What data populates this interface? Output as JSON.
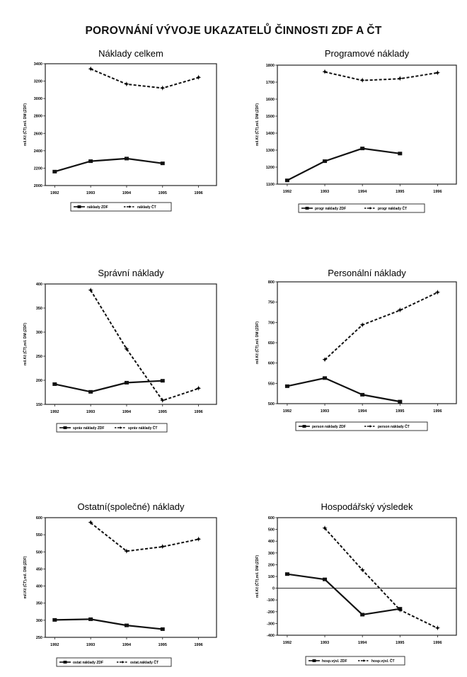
{
  "page_title": "POROVNÁNÍ VÝVOJE UKAZATELŮ ČINNOSTI ZDF A ČT",
  "chart_data": [
    {
      "type": "line",
      "title": "Náklady celkem",
      "ylabel": "mil.Kč (ČT),mil. DM (ZDF)",
      "categories": [
        "1992",
        "1993",
        "1994",
        "1995",
        "1996"
      ],
      "ylim": [
        2000,
        3400
      ],
      "yticks": [
        2000,
        2200,
        2400,
        2600,
        2800,
        3000,
        3200,
        3400
      ],
      "series": [
        {
          "name": "náklady  ZDF",
          "style": "solid",
          "values": [
            2160,
            2280,
            2310,
            2255,
            null
          ]
        },
        {
          "name": "náklady  ČT",
          "style": "dashed",
          "values": [
            null,
            3340,
            3165,
            3120,
            3240
          ]
        }
      ]
    },
    {
      "type": "line",
      "title": "Programové náklady",
      "ylabel": "mil.Kč (ČT),mil. DM (ZDF)",
      "categories": [
        "1992",
        "1993",
        "1994",
        "1995",
        "1996"
      ],
      "ylim": [
        1100,
        1800
      ],
      "yticks": [
        1100,
        1200,
        1300,
        1400,
        1500,
        1600,
        1700,
        1800
      ],
      "series": [
        {
          "name": "progr náklady  ZDF",
          "style": "solid",
          "values": [
            1122,
            1235,
            1310,
            1280,
            null
          ]
        },
        {
          "name": "progr náklady  ČT",
          "style": "dashed",
          "values": [
            null,
            1760,
            1710,
            1720,
            1755
          ]
        }
      ]
    },
    {
      "type": "line",
      "title": "Správní náklady",
      "ylabel": "mil.Kč (ČT),mil. DM (ZDF)",
      "categories": [
        "1992",
        "1993",
        "1994",
        "1995",
        "1996"
      ],
      "ylim": [
        150,
        400
      ],
      "yticks": [
        150,
        200,
        250,
        300,
        350,
        400
      ],
      "series": [
        {
          "name": "správ náklady  ZDF",
          "style": "solid",
          "values": [
            192,
            176,
            195,
            199,
            null
          ]
        },
        {
          "name": "správ náklady  ČT",
          "style": "dashed",
          "values": [
            null,
            387,
            265,
            158,
            183
          ]
        }
      ]
    },
    {
      "type": "line",
      "title": "Personální  náklady",
      "ylabel": "mil.Kč (ČT),mil. DM (ZDF)",
      "categories": [
        "1992",
        "1993",
        "1994",
        "1995",
        "1996"
      ],
      "ylim": [
        500,
        800
      ],
      "yticks": [
        500,
        550,
        600,
        650,
        700,
        750,
        800
      ],
      "series": [
        {
          "name": "person náklady  ZDF",
          "style": "solid",
          "values": [
            543,
            563,
            522,
            505,
            null
          ]
        },
        {
          "name": "person náklady  ČT",
          "style": "dashed",
          "values": [
            null,
            608,
            694,
            730,
            774
          ]
        }
      ]
    },
    {
      "type": "line",
      "title": "Ostatní(společné) náklady",
      "ylabel": "mil.Kč (ČT),mil. DM (ZDF)",
      "categories": [
        "1992",
        "1993",
        "1994",
        "1995",
        "1996"
      ],
      "ylim": [
        250,
        600
      ],
      "yticks": [
        250,
        300,
        350,
        400,
        450,
        500,
        550,
        600
      ],
      "series": [
        {
          "name": "ostat náklady  ZDF",
          "style": "solid",
          "values": [
            301,
            303,
            285,
            274,
            null
          ]
        },
        {
          "name": "ostat.náklady  ČT",
          "style": "dashed",
          "values": [
            null,
            585,
            502,
            515,
            537
          ]
        }
      ]
    },
    {
      "type": "line",
      "title": "Hospodářský výsledek",
      "ylabel": "mil.Kč (ČT),mil. DM (ZDF)",
      "categories": [
        "1992",
        "1993",
        "1994",
        "1995",
        "1996"
      ],
      "ylim": [
        -400,
        600
      ],
      "yticks": [
        -400,
        -300,
        -200,
        -100,
        0,
        100,
        200,
        300,
        400,
        500,
        600
      ],
      "zero_line": true,
      "series": [
        {
          "name": "hosp.výsl.  ZDF",
          "style": "solid",
          "values": [
            120,
            75,
            -225,
            -175,
            null
          ]
        },
        {
          "name": "hosp.výsl.  ČT",
          "style": "dashed",
          "values": [
            null,
            510,
            155,
            -185,
            -340
          ]
        }
      ]
    }
  ]
}
